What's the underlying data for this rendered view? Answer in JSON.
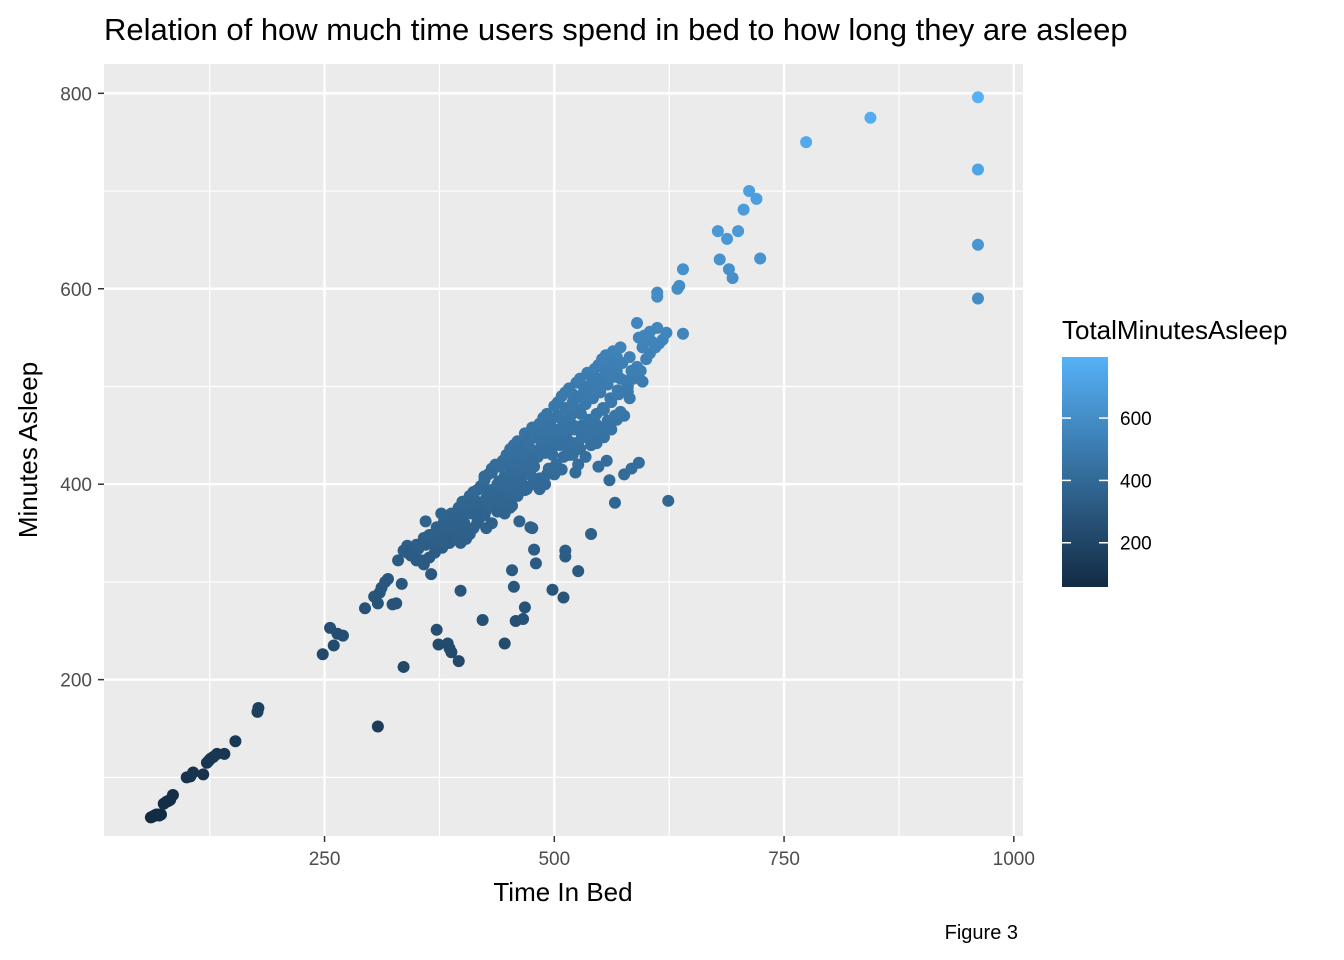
{
  "chart_data": {
    "type": "scatter",
    "title": "Relation of how much time users spend in bed to how long they are asleep",
    "xlabel": "Time In Bed",
    "ylabel": "Minutes Asleep",
    "caption": "Figure 3",
    "xlim": [
      10,
      1010
    ],
    "ylim": [
      40,
      830
    ],
    "x_ticks": [
      250,
      500,
      750,
      1000
    ],
    "y_ticks": [
      200,
      400,
      600,
      800
    ],
    "grid": true,
    "legend": {
      "title": "TotalMinutesAsleep",
      "placement": "right",
      "type": "colorbar",
      "ticks": [
        200,
        400,
        600
      ],
      "range": [
        58,
        796
      ],
      "color_low": "#132b43",
      "color_high": "#56b1f7"
    },
    "points": [
      [
        61,
        59
      ],
      [
        63,
        60
      ],
      [
        65,
        61
      ],
      [
        67,
        62
      ],
      [
        69,
        62
      ],
      [
        70,
        61
      ],
      [
        72,
        62
      ],
      [
        75,
        73
      ],
      [
        78,
        75
      ],
      [
        80,
        76
      ],
      [
        82,
        77
      ],
      [
        85,
        82
      ],
      [
        100,
        100
      ],
      [
        104,
        101
      ],
      [
        107,
        105
      ],
      [
        118,
        103
      ],
      [
        122,
        115
      ],
      [
        124,
        117
      ],
      [
        126,
        119
      ],
      [
        129,
        121
      ],
      [
        133,
        124
      ],
      [
        141,
        124
      ],
      [
        153,
        137
      ],
      [
        177,
        167
      ],
      [
        178,
        171
      ],
      [
        248,
        226
      ],
      [
        256,
        253
      ],
      [
        260,
        235
      ],
      [
        264,
        247
      ],
      [
        270,
        245
      ],
      [
        294,
        273
      ],
      [
        304,
        285
      ],
      [
        308,
        278
      ],
      [
        310,
        289
      ],
      [
        312,
        294
      ],
      [
        316,
        300
      ],
      [
        319,
        303
      ],
      [
        324,
        277
      ],
      [
        330,
        322
      ],
      [
        334,
        298
      ],
      [
        336,
        332
      ],
      [
        340,
        337
      ],
      [
        344,
        327
      ],
      [
        348,
        330
      ],
      [
        352,
        334
      ],
      [
        356,
        322
      ],
      [
        360,
        338
      ],
      [
        364,
        342
      ],
      [
        368,
        339
      ],
      [
        372,
        356
      ],
      [
        376,
        352
      ],
      [
        380,
        362
      ],
      [
        384,
        366
      ],
      [
        388,
        370
      ],
      [
        392,
        362
      ],
      [
        396,
        376
      ],
      [
        400,
        373
      ],
      [
        404,
        383
      ],
      [
        408,
        388
      ],
      [
        412,
        392
      ],
      [
        416,
        382
      ],
      [
        420,
        398
      ],
      [
        424,
        404
      ],
      [
        428,
        410
      ],
      [
        432,
        416
      ],
      [
        436,
        420
      ],
      [
        440,
        418
      ],
      [
        444,
        424
      ],
      [
        448,
        430
      ],
      [
        452,
        436
      ],
      [
        456,
        440
      ],
      [
        460,
        444
      ],
      [
        464,
        438
      ],
      [
        468,
        452
      ],
      [
        472,
        446
      ],
      [
        476,
        458
      ],
      [
        480,
        456
      ],
      [
        484,
        462
      ],
      [
        488,
        468
      ],
      [
        492,
        472
      ],
      [
        496,
        466
      ],
      [
        500,
        480
      ],
      [
        504,
        484
      ],
      [
        508,
        490
      ],
      [
        512,
        494
      ],
      [
        516,
        498
      ],
      [
        520,
        492
      ],
      [
        524,
        504
      ],
      [
        528,
        508
      ],
      [
        532,
        500
      ],
      [
        536,
        514
      ],
      [
        540,
        510
      ],
      [
        544,
        518
      ],
      [
        548,
        522
      ],
      [
        552,
        528
      ],
      [
        556,
        532
      ],
      [
        560,
        526
      ],
      [
        564,
        536
      ],
      [
        568,
        530
      ],
      [
        572,
        540
      ],
      [
        366,
        348
      ],
      [
        374,
        345
      ],
      [
        382,
        350
      ],
      [
        390,
        356
      ],
      [
        398,
        354
      ],
      [
        406,
        372
      ],
      [
        414,
        378
      ],
      [
        422,
        380
      ],
      [
        430,
        394
      ],
      [
        438,
        400
      ],
      [
        446,
        408
      ],
      [
        454,
        412
      ],
      [
        462,
        422
      ],
      [
        470,
        426
      ],
      [
        478,
        434
      ],
      [
        486,
        442
      ],
      [
        494,
        450
      ],
      [
        502,
        448
      ],
      [
        510,
        462
      ],
      [
        518,
        470
      ],
      [
        526,
        476
      ],
      [
        534,
        482
      ],
      [
        542,
        488
      ],
      [
        550,
        494
      ],
      [
        558,
        502
      ],
      [
        566,
        510
      ],
      [
        377,
        370
      ],
      [
        385,
        340
      ],
      [
        393,
        349
      ],
      [
        401,
        367
      ],
      [
        409,
        388
      ],
      [
        417,
        362
      ],
      [
        425,
        372
      ],
      [
        433,
        378
      ],
      [
        441,
        390
      ],
      [
        449,
        402
      ],
      [
        457,
        404
      ],
      [
        465,
        412
      ],
      [
        473,
        410
      ],
      [
        481,
        430
      ],
      [
        489,
        438
      ],
      [
        497,
        436
      ],
      [
        505,
        456
      ],
      [
        513,
        452
      ],
      [
        521,
        460
      ],
      [
        529,
        472
      ],
      [
        537,
        456
      ],
      [
        545,
        462
      ],
      [
        553,
        478
      ],
      [
        561,
        488
      ],
      [
        569,
        496
      ],
      [
        577,
        506
      ],
      [
        340,
        330
      ],
      [
        350,
        338
      ],
      [
        358,
        345
      ],
      [
        364,
        348
      ],
      [
        370,
        330
      ],
      [
        378,
        335
      ],
      [
        386,
        345
      ],
      [
        394,
        352
      ],
      [
        402,
        360
      ],
      [
        410,
        370
      ],
      [
        418,
        374
      ],
      [
        426,
        386
      ],
      [
        434,
        392
      ],
      [
        442,
        396
      ],
      [
        450,
        398
      ],
      [
        458,
        414
      ],
      [
        466,
        418
      ],
      [
        474,
        424
      ],
      [
        482,
        428
      ],
      [
        490,
        432
      ],
      [
        498,
        444
      ],
      [
        506,
        440
      ],
      [
        514,
        446
      ],
      [
        522,
        456
      ],
      [
        530,
        460
      ],
      [
        538,
        466
      ],
      [
        546,
        472
      ],
      [
        554,
        476
      ],
      [
        562,
        484
      ],
      [
        570,
        492
      ],
      [
        412,
        355
      ],
      [
        424,
        368
      ],
      [
        430,
        378
      ],
      [
        436,
        384
      ],
      [
        442,
        388
      ],
      [
        452,
        376
      ],
      [
        460,
        388
      ],
      [
        468,
        394
      ],
      [
        476,
        400
      ],
      [
        484,
        406
      ],
      [
        494,
        416
      ],
      [
        502,
        420
      ],
      [
        510,
        428
      ],
      [
        518,
        434
      ],
      [
        526,
        440
      ],
      [
        534,
        448
      ],
      [
        542,
        454
      ],
      [
        550,
        458
      ],
      [
        558,
        465
      ],
      [
        566,
        470
      ],
      [
        580,
        500
      ],
      [
        586,
        508
      ],
      [
        590,
        520
      ],
      [
        594,
        516
      ],
      [
        600,
        528
      ],
      [
        604,
        534
      ],
      [
        610,
        540
      ],
      [
        614,
        544
      ],
      [
        618,
        548
      ],
      [
        622,
        555
      ],
      [
        420,
        370
      ],
      [
        426,
        355
      ],
      [
        432,
        360
      ],
      [
        438,
        372
      ],
      [
        444,
        380
      ],
      [
        450,
        388
      ],
      [
        456,
        392
      ],
      [
        484,
        395
      ],
      [
        490,
        400
      ],
      [
        500,
        410
      ],
      [
        508,
        415
      ],
      [
        520,
        430
      ],
      [
        528,
        436
      ],
      [
        540,
        440
      ],
      [
        546,
        450
      ],
      [
        552,
        456
      ],
      [
        560,
        460
      ],
      [
        568,
        466
      ],
      [
        576,
        470
      ],
      [
        386,
        340
      ],
      [
        398,
        340
      ],
      [
        404,
        344
      ],
      [
        416,
        360
      ],
      [
        428,
        390
      ],
      [
        440,
        402
      ],
      [
        446,
        382
      ],
      [
        458,
        400
      ],
      [
        466,
        430
      ],
      [
        474,
        436
      ],
      [
        486,
        446
      ],
      [
        496,
        458
      ],
      [
        506,
        468
      ],
      [
        516,
        478
      ],
      [
        524,
        488
      ],
      [
        532,
        494
      ],
      [
        540,
        502
      ],
      [
        548,
        508
      ],
      [
        556,
        516
      ],
      [
        564,
        520
      ],
      [
        574,
        524
      ],
      [
        582,
        530
      ],
      [
        596,
        540
      ],
      [
        606,
        546
      ],
      [
        360,
        362
      ],
      [
        368,
        348
      ],
      [
        376,
        342
      ],
      [
        384,
        356
      ],
      [
        392,
        364
      ],
      [
        400,
        382
      ],
      [
        408,
        380
      ],
      [
        416,
        394
      ],
      [
        424,
        408
      ],
      [
        432,
        412
      ],
      [
        440,
        420
      ],
      [
        448,
        420
      ],
      [
        456,
        430
      ],
      [
        464,
        434
      ],
      [
        472,
        442
      ],
      [
        480,
        448
      ],
      [
        488,
        454
      ],
      [
        496,
        460
      ],
      [
        504,
        470
      ],
      [
        512,
        478
      ],
      [
        520,
        484
      ],
      [
        528,
        490
      ],
      [
        536,
        494
      ],
      [
        544,
        500
      ],
      [
        552,
        504
      ],
      [
        560,
        512
      ],
      [
        568,
        516
      ],
      [
        470,
        395
      ],
      [
        480,
        402
      ],
      [
        492,
        410
      ],
      [
        500,
        416
      ],
      [
        514,
        438
      ],
      [
        522,
        442
      ],
      [
        530,
        448
      ],
      [
        540,
        452
      ],
      [
        546,
        442
      ],
      [
        554,
        448
      ],
      [
        562,
        456
      ],
      [
        572,
        474
      ],
      [
        584,
        516
      ],
      [
        592,
        550
      ],
      [
        598,
        552
      ],
      [
        604,
        556
      ],
      [
        612,
        560
      ],
      [
        440,
        403
      ],
      [
        456,
        422
      ],
      [
        464,
        402
      ],
      [
        474,
        410
      ],
      [
        478,
        418
      ],
      [
        498,
        430
      ],
      [
        516,
        430
      ],
      [
        526,
        420
      ],
      [
        534,
        428
      ],
      [
        548,
        418
      ],
      [
        560,
        404
      ],
      [
        576,
        410
      ],
      [
        584,
        416
      ],
      [
        592,
        422
      ],
      [
        350,
        322
      ],
      [
        358,
        318
      ],
      [
        364,
        325
      ],
      [
        394,
        362
      ],
      [
        402,
        360
      ],
      [
        416,
        368
      ],
      [
        408,
        349
      ],
      [
        430,
        382
      ],
      [
        446,
        370
      ],
      [
        454,
        378
      ],
      [
        462,
        362
      ],
      [
        474,
        356
      ],
      [
        523,
        412
      ],
      [
        557,
        424
      ],
      [
        566,
        381
      ],
      [
        624,
        383
      ],
      [
        640,
        554
      ],
      [
        640,
        620
      ],
      [
        634,
        600
      ],
      [
        636,
        603
      ],
      [
        612,
        592
      ],
      [
        612,
        596
      ],
      [
        590,
        565
      ],
      [
        600,
        550
      ],
      [
        596,
        505
      ],
      [
        580,
        495
      ],
      [
        572,
        508
      ],
      [
        582,
        488
      ],
      [
        308,
        152
      ],
      [
        336,
        213
      ],
      [
        372,
        251
      ],
      [
        374,
        236
      ],
      [
        384,
        237
      ],
      [
        386,
        232
      ],
      [
        388,
        228
      ],
      [
        396,
        219
      ],
      [
        398,
        291
      ],
      [
        422,
        261
      ],
      [
        446,
        237
      ],
      [
        454,
        312
      ],
      [
        456,
        295
      ],
      [
        458,
        260
      ],
      [
        466,
        262
      ],
      [
        468,
        274
      ],
      [
        476,
        355
      ],
      [
        478,
        333
      ],
      [
        480,
        319
      ],
      [
        498,
        292
      ],
      [
        510,
        284
      ],
      [
        512,
        326
      ],
      [
        512,
        332
      ],
      [
        526,
        311
      ],
      [
        540,
        349
      ],
      [
        366,
        308
      ],
      [
        358,
        320
      ],
      [
        328,
        278
      ],
      [
        678,
        659
      ],
      [
        680,
        630
      ],
      [
        688,
        651
      ],
      [
        690,
        620
      ],
      [
        694,
        611
      ],
      [
        700,
        659
      ],
      [
        706,
        681
      ],
      [
        712,
        700
      ],
      [
        720,
        692
      ],
      [
        724,
        631
      ],
      [
        774,
        750
      ],
      [
        844,
        775
      ],
      [
        961,
        796
      ],
      [
        961,
        722
      ],
      [
        961,
        645
      ],
      [
        961,
        590
      ]
    ]
  }
}
